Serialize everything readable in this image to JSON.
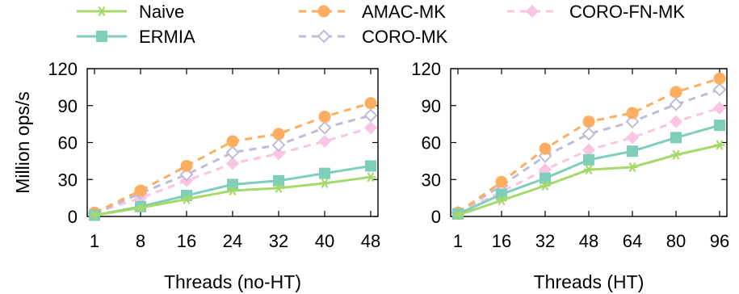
{
  "legend": {
    "placement": "top",
    "entries": [
      {
        "name": "Naive",
        "color": "#a6d96a",
        "marker": "asterisk",
        "dash": "solid"
      },
      {
        "name": "ERMIA",
        "color": "#7fcdbb",
        "marker": "filled-square",
        "dash": "solid"
      },
      {
        "name": "AMAC-MK",
        "color": "#fdae61",
        "marker": "filled-circle",
        "dash": "dashed"
      },
      {
        "name": "CORO-MK",
        "color": "#bcbddc",
        "marker": "open-diamond",
        "dash": "dashed"
      },
      {
        "name": "CORO-FN-MK",
        "color": "#fbc4e2",
        "marker": "filled-diamond",
        "dash": "dashed"
      }
    ]
  },
  "chart_data": [
    {
      "type": "line",
      "xlabel": "Threads (no-HT)",
      "ylabel": "Million ops/s",
      "ylim": [
        0,
        120
      ],
      "yticks": [
        0,
        30,
        60,
        90,
        120
      ],
      "xticks": [
        1,
        8,
        16,
        24,
        32,
        40,
        48
      ],
      "grid": false,
      "x": [
        1,
        8,
        16,
        24,
        32,
        40,
        48
      ],
      "series": [
        {
          "name": "Naive",
          "values": [
            1,
            7,
            14,
            21,
            23,
            27,
            32
          ]
        },
        {
          "name": "ERMIA",
          "values": [
            1,
            8,
            17,
            26,
            29,
            35,
            41
          ]
        },
        {
          "name": "AMAC-MK",
          "values": [
            3,
            21,
            41,
            61,
            67,
            81,
            92
          ]
        },
        {
          "name": "CORO-MK",
          "values": [
            2,
            19,
            34,
            52,
            58,
            72,
            82
          ]
        },
        {
          "name": "CORO-FN-MK",
          "values": [
            3,
            15,
            29,
            43,
            51,
            61,
            72
          ]
        }
      ]
    },
    {
      "type": "line",
      "xlabel": "Threads (HT)",
      "ylabel": "",
      "ylim": [
        0,
        120
      ],
      "yticks": [
        0,
        30,
        60,
        90,
        120
      ],
      "xticks": [
        1,
        16,
        32,
        48,
        64,
        80,
        96
      ],
      "grid": false,
      "x": [
        1,
        16,
        32,
        48,
        64,
        80,
        96
      ],
      "series": [
        {
          "name": "Naive",
          "values": [
            1,
            13,
            25,
            38,
            40,
            50,
            58
          ]
        },
        {
          "name": "ERMIA",
          "values": [
            2,
            18,
            31,
            46,
            53,
            64,
            74
          ]
        },
        {
          "name": "AMAC-MK",
          "values": [
            3,
            28,
            55,
            77,
            84,
            101,
            112
          ]
        },
        {
          "name": "CORO-MK",
          "values": [
            3,
            25,
            49,
            67,
            77,
            91,
            103
          ]
        },
        {
          "name": "CORO-FN-MK",
          "values": [
            3,
            20,
            38,
            54,
            64,
            77,
            88
          ]
        }
      ]
    }
  ]
}
